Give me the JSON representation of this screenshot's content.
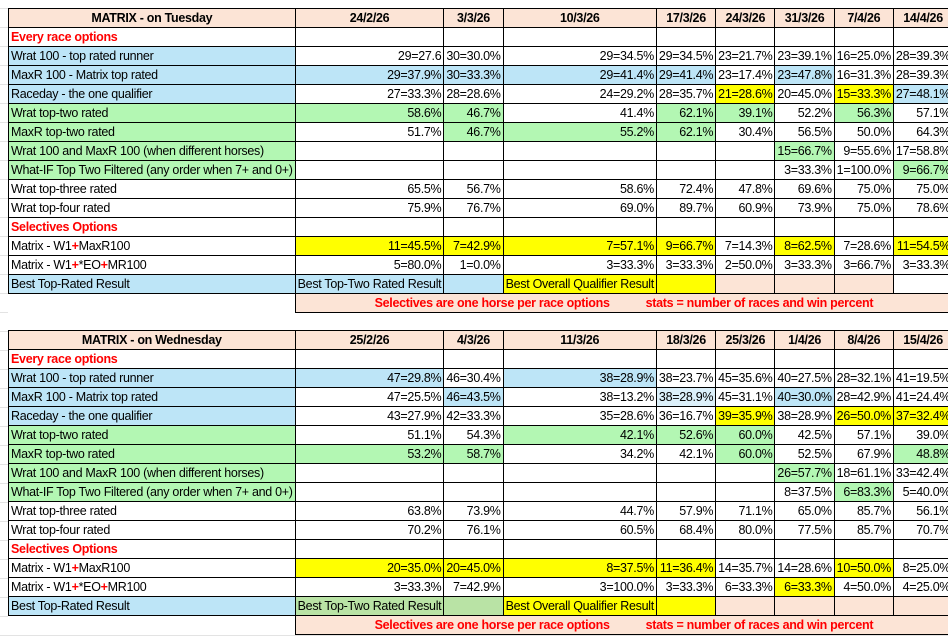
{
  "colors": {
    "b": "#bde5f7",
    "lb": "#dcf0fa",
    "g": "#b3f7b3",
    "y": "#ffff00",
    "p": "#fce4d6",
    "gg": "#b9e3a5",
    "section_text": "#ff0000"
  },
  "tables": [
    {
      "title": "MATRIX - on Tuesday",
      "dates": [
        "24/2/26",
        "3/3/26",
        "10/3/26",
        "17/3/26",
        "24/3/26",
        "31/3/26",
        "7/4/26",
        "14/4/26"
      ],
      "rows": [
        {
          "type": "section",
          "label": "Every race options"
        },
        {
          "label": "Wrat 100 - top rated runner",
          "lc": "b",
          "cells": [
            [
              "29=27.6",
              ""
            ],
            [
              "30=30.0%",
              ""
            ],
            [
              "29=34.5%",
              ""
            ],
            [
              "29=34.5%",
              ""
            ],
            [
              "23=21.7%",
              ""
            ],
            [
              "23=39.1%",
              ""
            ],
            [
              "16=25.0%",
              ""
            ],
            [
              "28=39.3%",
              ""
            ]
          ]
        },
        {
          "label": "MaxR 100 - Matrix top rated",
          "lc": "b",
          "cells": [
            [
              "29=37.9%",
              "b"
            ],
            [
              "30=33.3%",
              "b"
            ],
            [
              "29=41.4%",
              "b"
            ],
            [
              "29=41.4%",
              "b"
            ],
            [
              "23=17.4%",
              ""
            ],
            [
              "23=47.8%",
              "b"
            ],
            [
              "16=31.3%",
              ""
            ],
            [
              "28=39.3%",
              ""
            ]
          ]
        },
        {
          "label": "Raceday - the one qualifier",
          "lc": "b",
          "cells": [
            [
              "27=33.3%",
              ""
            ],
            [
              "28=28.6%",
              ""
            ],
            [
              "24=29.2%",
              ""
            ],
            [
              "28=35.7%",
              ""
            ],
            [
              "21=28.6%",
              "y"
            ],
            [
              "20=45.0%",
              ""
            ],
            [
              "15=33.3%",
              "y"
            ],
            [
              "27=48.1%",
              "b"
            ]
          ]
        },
        {
          "label": "Wrat top-two rated",
          "lc": "g",
          "cells": [
            [
              "58.6%",
              "g"
            ],
            [
              "46.7%",
              "g"
            ],
            [
              "41.4%",
              ""
            ],
            [
              "62.1%",
              "g"
            ],
            [
              "39.1%",
              "g"
            ],
            [
              "52.2%",
              ""
            ],
            [
              "56.3%",
              "g"
            ],
            [
              "57.1%",
              ""
            ]
          ]
        },
        {
          "label": "MaxR top-two rated",
          "lc": "g",
          "cells": [
            [
              "51.7%",
              ""
            ],
            [
              "46.7%",
              "g"
            ],
            [
              "55.2%",
              "g"
            ],
            [
              "62.1%",
              "g"
            ],
            [
              "30.4%",
              ""
            ],
            [
              "56.5%",
              ""
            ],
            [
              "50.0%",
              ""
            ],
            [
              "64.3%",
              ""
            ]
          ]
        },
        {
          "label": "Wrat 100 and MaxR 100 (when different horses)",
          "lc": "g",
          "cells": [
            [
              "",
              ""
            ],
            [
              "",
              ""
            ],
            [
              "",
              ""
            ],
            [
              "",
              ""
            ],
            [
              "",
              ""
            ],
            [
              "15=66.7%",
              "g"
            ],
            [
              "9=55.6%",
              ""
            ],
            [
              "17=58.8%",
              ""
            ]
          ]
        },
        {
          "label": "What-IF Top Two Filtered (any order when 7+ and 0+)",
          "lc": "g",
          "cells": [
            [
              "",
              ""
            ],
            [
              "",
              ""
            ],
            [
              "",
              ""
            ],
            [
              "",
              ""
            ],
            [
              "",
              ""
            ],
            [
              "3=33.3%",
              ""
            ],
            [
              "1=100.0%",
              ""
            ],
            [
              "9=66.7%",
              "g"
            ]
          ]
        },
        {
          "label": "Wrat top-three rated",
          "lc": "",
          "cells": [
            [
              "65.5%",
              ""
            ],
            [
              "56.7%",
              ""
            ],
            [
              "58.6%",
              ""
            ],
            [
              "72.4%",
              ""
            ],
            [
              "47.8%",
              ""
            ],
            [
              "69.6%",
              ""
            ],
            [
              "75.0%",
              ""
            ],
            [
              "75.0%",
              ""
            ]
          ]
        },
        {
          "label": "Wrat top-four rated",
          "lc": "",
          "cells": [
            [
              "75.9%",
              ""
            ],
            [
              "76.7%",
              ""
            ],
            [
              "69.0%",
              ""
            ],
            [
              "89.7%",
              ""
            ],
            [
              "60.9%",
              ""
            ],
            [
              "73.9%",
              ""
            ],
            [
              "75.0%",
              ""
            ],
            [
              "78.6%",
              ""
            ]
          ]
        },
        {
          "type": "section",
          "label": "Selectives Options"
        },
        {
          "label_parts": [
            "Matrix - W1",
            "+",
            "MaxR100"
          ],
          "lc": "",
          "cells": [
            [
              "11=45.5%",
              "y"
            ],
            [
              "7=42.9%",
              "y"
            ],
            [
              "7=57.1%",
              "y"
            ],
            [
              "9=66.7%",
              "y"
            ],
            [
              "7=14.3%",
              ""
            ],
            [
              "8=62.5%",
              "y"
            ],
            [
              "7=28.6%",
              ""
            ],
            [
              "11=54.5%",
              "y"
            ]
          ]
        },
        {
          "label_parts": [
            "Matrix - W1",
            "+",
            "*EO",
            "+",
            "MR100"
          ],
          "lc": "",
          "cells": [
            [
              "5=80.0%",
              ""
            ],
            [
              "1=0.0%",
              ""
            ],
            [
              "3=33.3%",
              ""
            ],
            [
              "3=33.3%",
              ""
            ],
            [
              "2=50.0%",
              ""
            ],
            [
              "3=33.3%",
              ""
            ],
            [
              "3=66.7%",
              ""
            ],
            [
              "3=33.3%",
              ""
            ]
          ]
        }
      ],
      "best": {
        "label": "Best Top-Rated Result",
        "top_two": "Best Top-Two Rated Result",
        "overall": "Best Overall Qualifier Result",
        "fills": [
          "b",
          "b",
          "y",
          "y",
          "p",
          "p",
          "p",
          ""
        ]
      },
      "footnote": [
        "Selectives are one horse per race options",
        "stats = number of races and win percent"
      ]
    },
    {
      "title": "MATRIX - on Wednesday",
      "dates": [
        "25/2/26",
        "4/3/26",
        "11/3/26",
        "18/3/26",
        "25/3/26",
        "1/4/26",
        "8/4/26",
        "15/4/26"
      ],
      "rows": [
        {
          "type": "section",
          "label": "Every race options"
        },
        {
          "label": "Wrat 100 - top rated runner",
          "lc": "b",
          "cells": [
            [
              "47=29.8%",
              "b"
            ],
            [
              "46=30.4%",
              ""
            ],
            [
              "38=28.9%",
              "b"
            ],
            [
              "38=23.7%",
              ""
            ],
            [
              "45=35.6%",
              ""
            ],
            [
              "40=27.5%",
              ""
            ],
            [
              "28=32.1%",
              ""
            ],
            [
              "41=19.5%",
              ""
            ]
          ]
        },
        {
          "label": "MaxR 100 - Matrix top rated",
          "lc": "b",
          "cells": [
            [
              "47=25.5%",
              ""
            ],
            [
              "46=43.5%",
              "b"
            ],
            [
              "38=13.2%",
              ""
            ],
            [
              "38=28.9%",
              "lb"
            ],
            [
              "45=31.1%",
              ""
            ],
            [
              "40=30.0%",
              "b"
            ],
            [
              "28=42.9%",
              ""
            ],
            [
              "41=24.4%",
              ""
            ]
          ]
        },
        {
          "label": "Raceday - the one qualifier",
          "lc": "b",
          "cells": [
            [
              "43=27.9%",
              ""
            ],
            [
              "42=33.3%",
              ""
            ],
            [
              "35=28.6%",
              ""
            ],
            [
              "36=16.7%",
              ""
            ],
            [
              "39=35.9%",
              "y"
            ],
            [
              "38=28.9%",
              ""
            ],
            [
              "26=50.0%",
              "y"
            ],
            [
              "37=32.4%",
              "y"
            ]
          ]
        },
        {
          "label": "Wrat top-two rated",
          "lc": "g",
          "cells": [
            [
              "51.1%",
              ""
            ],
            [
              "54.3%",
              ""
            ],
            [
              "42.1%",
              "g"
            ],
            [
              "52.6%",
              "g"
            ],
            [
              "60.0%",
              "g"
            ],
            [
              "42.5%",
              ""
            ],
            [
              "57.1%",
              ""
            ],
            [
              "39.0%",
              ""
            ]
          ]
        },
        {
          "label": "MaxR top-two rated",
          "lc": "g",
          "cells": [
            [
              "53.2%",
              "g"
            ],
            [
              "58.7%",
              "g"
            ],
            [
              "34.2%",
              ""
            ],
            [
              "42.1%",
              ""
            ],
            [
              "60.0%",
              "g"
            ],
            [
              "52.5%",
              ""
            ],
            [
              "67.9%",
              ""
            ],
            [
              "48.8%",
              "g"
            ]
          ]
        },
        {
          "label": "Wrat 100 and MaxR 100 (when different horses)",
          "lc": "g",
          "cells": [
            [
              "",
              ""
            ],
            [
              "",
              ""
            ],
            [
              "",
              ""
            ],
            [
              "",
              ""
            ],
            [
              "",
              ""
            ],
            [
              "26=57.7%",
              "g"
            ],
            [
              "18=61.1%",
              ""
            ],
            [
              "33=42.4%",
              ""
            ]
          ]
        },
        {
          "label": "What-IF Top Two Filtered (any order when 7+ and 0+)",
          "lc": "g",
          "cells": [
            [
              "",
              ""
            ],
            [
              "",
              ""
            ],
            [
              "",
              ""
            ],
            [
              "",
              ""
            ],
            [
              "",
              ""
            ],
            [
              "8=37.5%",
              ""
            ],
            [
              "6=83.3%",
              "g"
            ],
            [
              "5=40.0%",
              ""
            ]
          ]
        },
        {
          "label": "Wrat top-three rated",
          "lc": "",
          "cells": [
            [
              "63.8%",
              ""
            ],
            [
              "73.9%",
              ""
            ],
            [
              "44.7%",
              ""
            ],
            [
              "57.9%",
              ""
            ],
            [
              "71.1%",
              ""
            ],
            [
              "65.0%",
              ""
            ],
            [
              "85.7%",
              ""
            ],
            [
              "56.1%",
              ""
            ]
          ]
        },
        {
          "label": "Wrat top-four rated",
          "lc": "",
          "cells": [
            [
              "70.2%",
              ""
            ],
            [
              "76.1%",
              ""
            ],
            [
              "60.5%",
              ""
            ],
            [
              "68.4%",
              ""
            ],
            [
              "80.0%",
              ""
            ],
            [
              "77.5%",
              ""
            ],
            [
              "85.7%",
              ""
            ],
            [
              "70.7%",
              ""
            ]
          ]
        },
        {
          "type": "section",
          "label": "Selectives Options"
        },
        {
          "label_parts": [
            "Matrix - W1",
            "+",
            "MaxR100"
          ],
          "lc": "",
          "cells": [
            [
              "20=35.0%",
              "y"
            ],
            [
              "20=45.0%",
              "y"
            ],
            [
              "8=37.5%",
              "y"
            ],
            [
              "11=36.4%",
              "y"
            ],
            [
              "14=35.7%",
              ""
            ],
            [
              "14=28.6%",
              ""
            ],
            [
              "10=50.0%",
              "y"
            ],
            [
              "8=25.0%",
              ""
            ]
          ]
        },
        {
          "label_parts": [
            "Matrix - W1",
            "+",
            "*EO",
            "+",
            "MR100"
          ],
          "lc": "",
          "cells": [
            [
              "3=33.3%",
              ""
            ],
            [
              "7=42.9%",
              ""
            ],
            [
              "3=100.0%",
              ""
            ],
            [
              "3=33.3%",
              ""
            ],
            [
              "6=33.3%",
              ""
            ],
            [
              "6=33.3%",
              "y"
            ],
            [
              "4=50.0%",
              ""
            ],
            [
              "4=25.0%",
              ""
            ]
          ]
        }
      ],
      "best": {
        "label": "Best Top-Rated Result",
        "top_two": "Best Top-Two Rated Result",
        "overall": "Best Overall Qualifier Result",
        "fills": [
          "gg",
          "gg",
          "y",
          "y",
          "p",
          "p",
          "p",
          "p"
        ]
      },
      "footnote": [
        "Selectives are one horse per race options",
        "stats = number of races and win percent"
      ]
    }
  ]
}
